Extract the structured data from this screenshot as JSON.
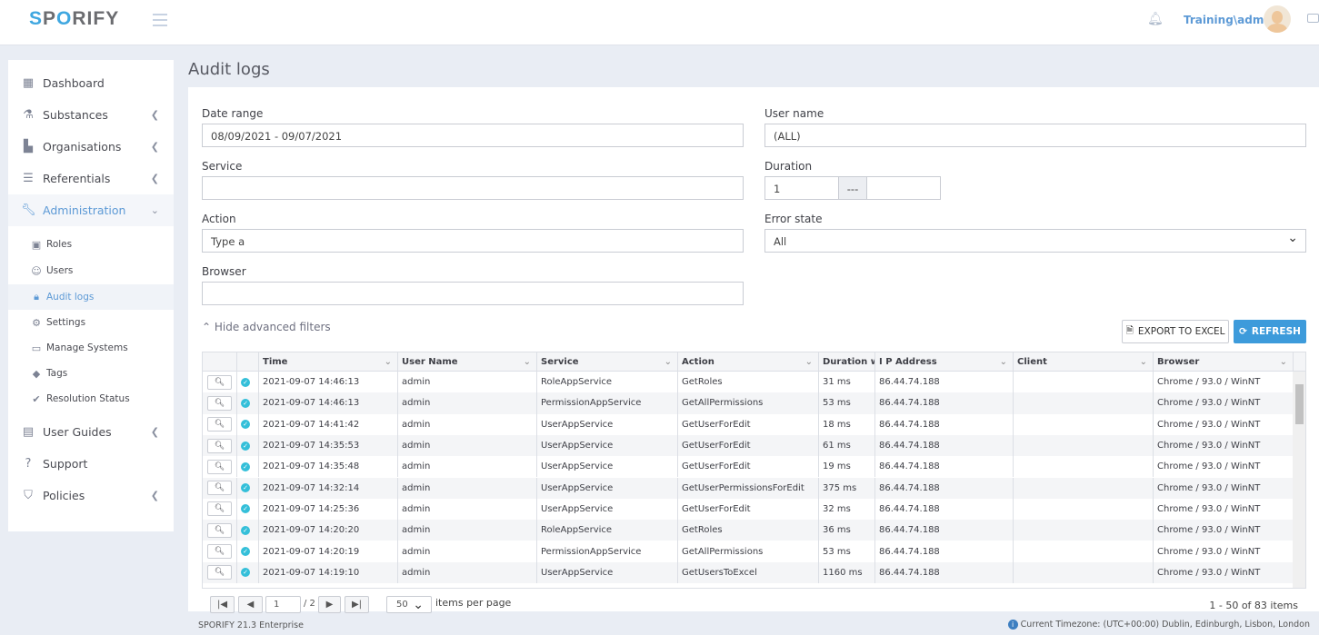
{
  "header": {
    "logo": "SPORIFY",
    "user": "Training\\admin"
  },
  "sidebar": {
    "items": [
      {
        "label": "Dashboard",
        "icon": "grid-icon"
      },
      {
        "label": "Substances",
        "icon": "flask-icon"
      },
      {
        "label": "Organisations",
        "icon": "chart-icon"
      },
      {
        "label": "Referentials",
        "icon": "list-icon"
      },
      {
        "label": "Administration",
        "icon": "wrench-icon"
      },
      {
        "label": "User Guides",
        "icon": "book-icon"
      },
      {
        "label": "Support",
        "icon": "question-icon"
      },
      {
        "label": "Policies",
        "icon": "shield-icon"
      }
    ],
    "sub": [
      {
        "label": "Roles"
      },
      {
        "label": "Users"
      },
      {
        "label": "Audit logs"
      },
      {
        "label": "Settings"
      },
      {
        "label": "Manage Systems"
      },
      {
        "label": "Tags"
      },
      {
        "label": "Resolution Status"
      }
    ]
  },
  "page": {
    "title": "Audit logs"
  },
  "filters": {
    "date_label": "Date range",
    "date_value": "08/09/2021 - 09/07/2021",
    "user_label": "User name",
    "user_value": "(ALL)",
    "service_label": "Service",
    "duration_label": "Duration",
    "duration_min": "1",
    "duration_sep": "---",
    "action_label": "Action",
    "action_value": "Type a",
    "error_label": "Error state",
    "error_value": "All",
    "browser_label": "Browser",
    "hide_advanced": "Hide advanced filters",
    "export": "EXPORT TO EXCEL",
    "refresh": "REFRESH"
  },
  "table": {
    "columns": [
      "Time",
      "User Name",
      "Service",
      "Action",
      "Duration w...",
      "I P Address",
      "Client",
      "Browser"
    ],
    "rows": [
      [
        "2021-09-07 14:46:13",
        "admin",
        "RoleAppService",
        "GetRoles",
        "31 ms",
        "86.44.74.188",
        "",
        "Chrome / 93.0 / WinNT"
      ],
      [
        "2021-09-07 14:46:13",
        "admin",
        "PermissionAppService",
        "GetAllPermissions",
        "53 ms",
        "86.44.74.188",
        "",
        "Chrome / 93.0 / WinNT"
      ],
      [
        "2021-09-07 14:41:42",
        "admin",
        "UserAppService",
        "GetUserForEdit",
        "18 ms",
        "86.44.74.188",
        "",
        "Chrome / 93.0 / WinNT"
      ],
      [
        "2021-09-07 14:35:53",
        "admin",
        "UserAppService",
        "GetUserForEdit",
        "61 ms",
        "86.44.74.188",
        "",
        "Chrome / 93.0 / WinNT"
      ],
      [
        "2021-09-07 14:35:48",
        "admin",
        "UserAppService",
        "GetUserForEdit",
        "19 ms",
        "86.44.74.188",
        "",
        "Chrome / 93.0 / WinNT"
      ],
      [
        "2021-09-07 14:32:14",
        "admin",
        "UserAppService",
        "GetUserPermissionsForEdit",
        "375 ms",
        "86.44.74.188",
        "",
        "Chrome / 93.0 / WinNT"
      ],
      [
        "2021-09-07 14:25:36",
        "admin",
        "UserAppService",
        "GetUserForEdit",
        "32 ms",
        "86.44.74.188",
        "",
        "Chrome / 93.0 / WinNT"
      ],
      [
        "2021-09-07 14:20:20",
        "admin",
        "RoleAppService",
        "GetRoles",
        "36 ms",
        "86.44.74.188",
        "",
        "Chrome / 93.0 / WinNT"
      ],
      [
        "2021-09-07 14:20:19",
        "admin",
        "PermissionAppService",
        "GetAllPermissions",
        "53 ms",
        "86.44.74.188",
        "",
        "Chrome / 93.0 / WinNT"
      ],
      [
        "2021-09-07 14:19:10",
        "admin",
        "UserAppService",
        "GetUsersToExcel",
        "1160 ms",
        "86.44.74.188",
        "",
        "Chrome / 93.0 / WinNT"
      ]
    ]
  },
  "pager": {
    "page": "1",
    "of": "/ 2",
    "page_size": "50",
    "items_per_page": "items per page",
    "summary": "1 - 50 of 83 items"
  },
  "footer": {
    "version": "SPORIFY 21.3 Enterprise",
    "timezone": "Current Timezone: (UTC+00:00) Dublin, Edinburgh, Lisbon, London"
  },
  "colors": {
    "accent": "#3d9bdb",
    "success": "#34bfd9"
  }
}
